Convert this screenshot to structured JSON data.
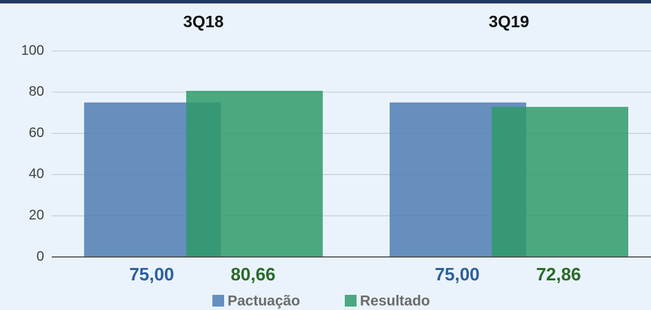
{
  "chart_data": {
    "type": "bar",
    "categories": [
      "3Q18",
      "3Q19"
    ],
    "series": [
      {
        "name": "Pactuação",
        "color": "#4f7db3",
        "values": [
          75,
          75
        ],
        "value_labels": [
          "75,00",
          "75,00"
        ],
        "label_color": "#2e5f9a"
      },
      {
        "name": "Resultado",
        "color": "#2f9a68",
        "values": [
          80.66,
          72.86
        ],
        "value_labels": [
          "80,66",
          "72,86"
        ],
        "label_color": "#2a6a2a"
      }
    ],
    "ylim": [
      0,
      100
    ],
    "yticks": [
      0,
      20,
      40,
      60,
      80,
      100
    ],
    "grid": true,
    "legend": "bottom"
  }
}
